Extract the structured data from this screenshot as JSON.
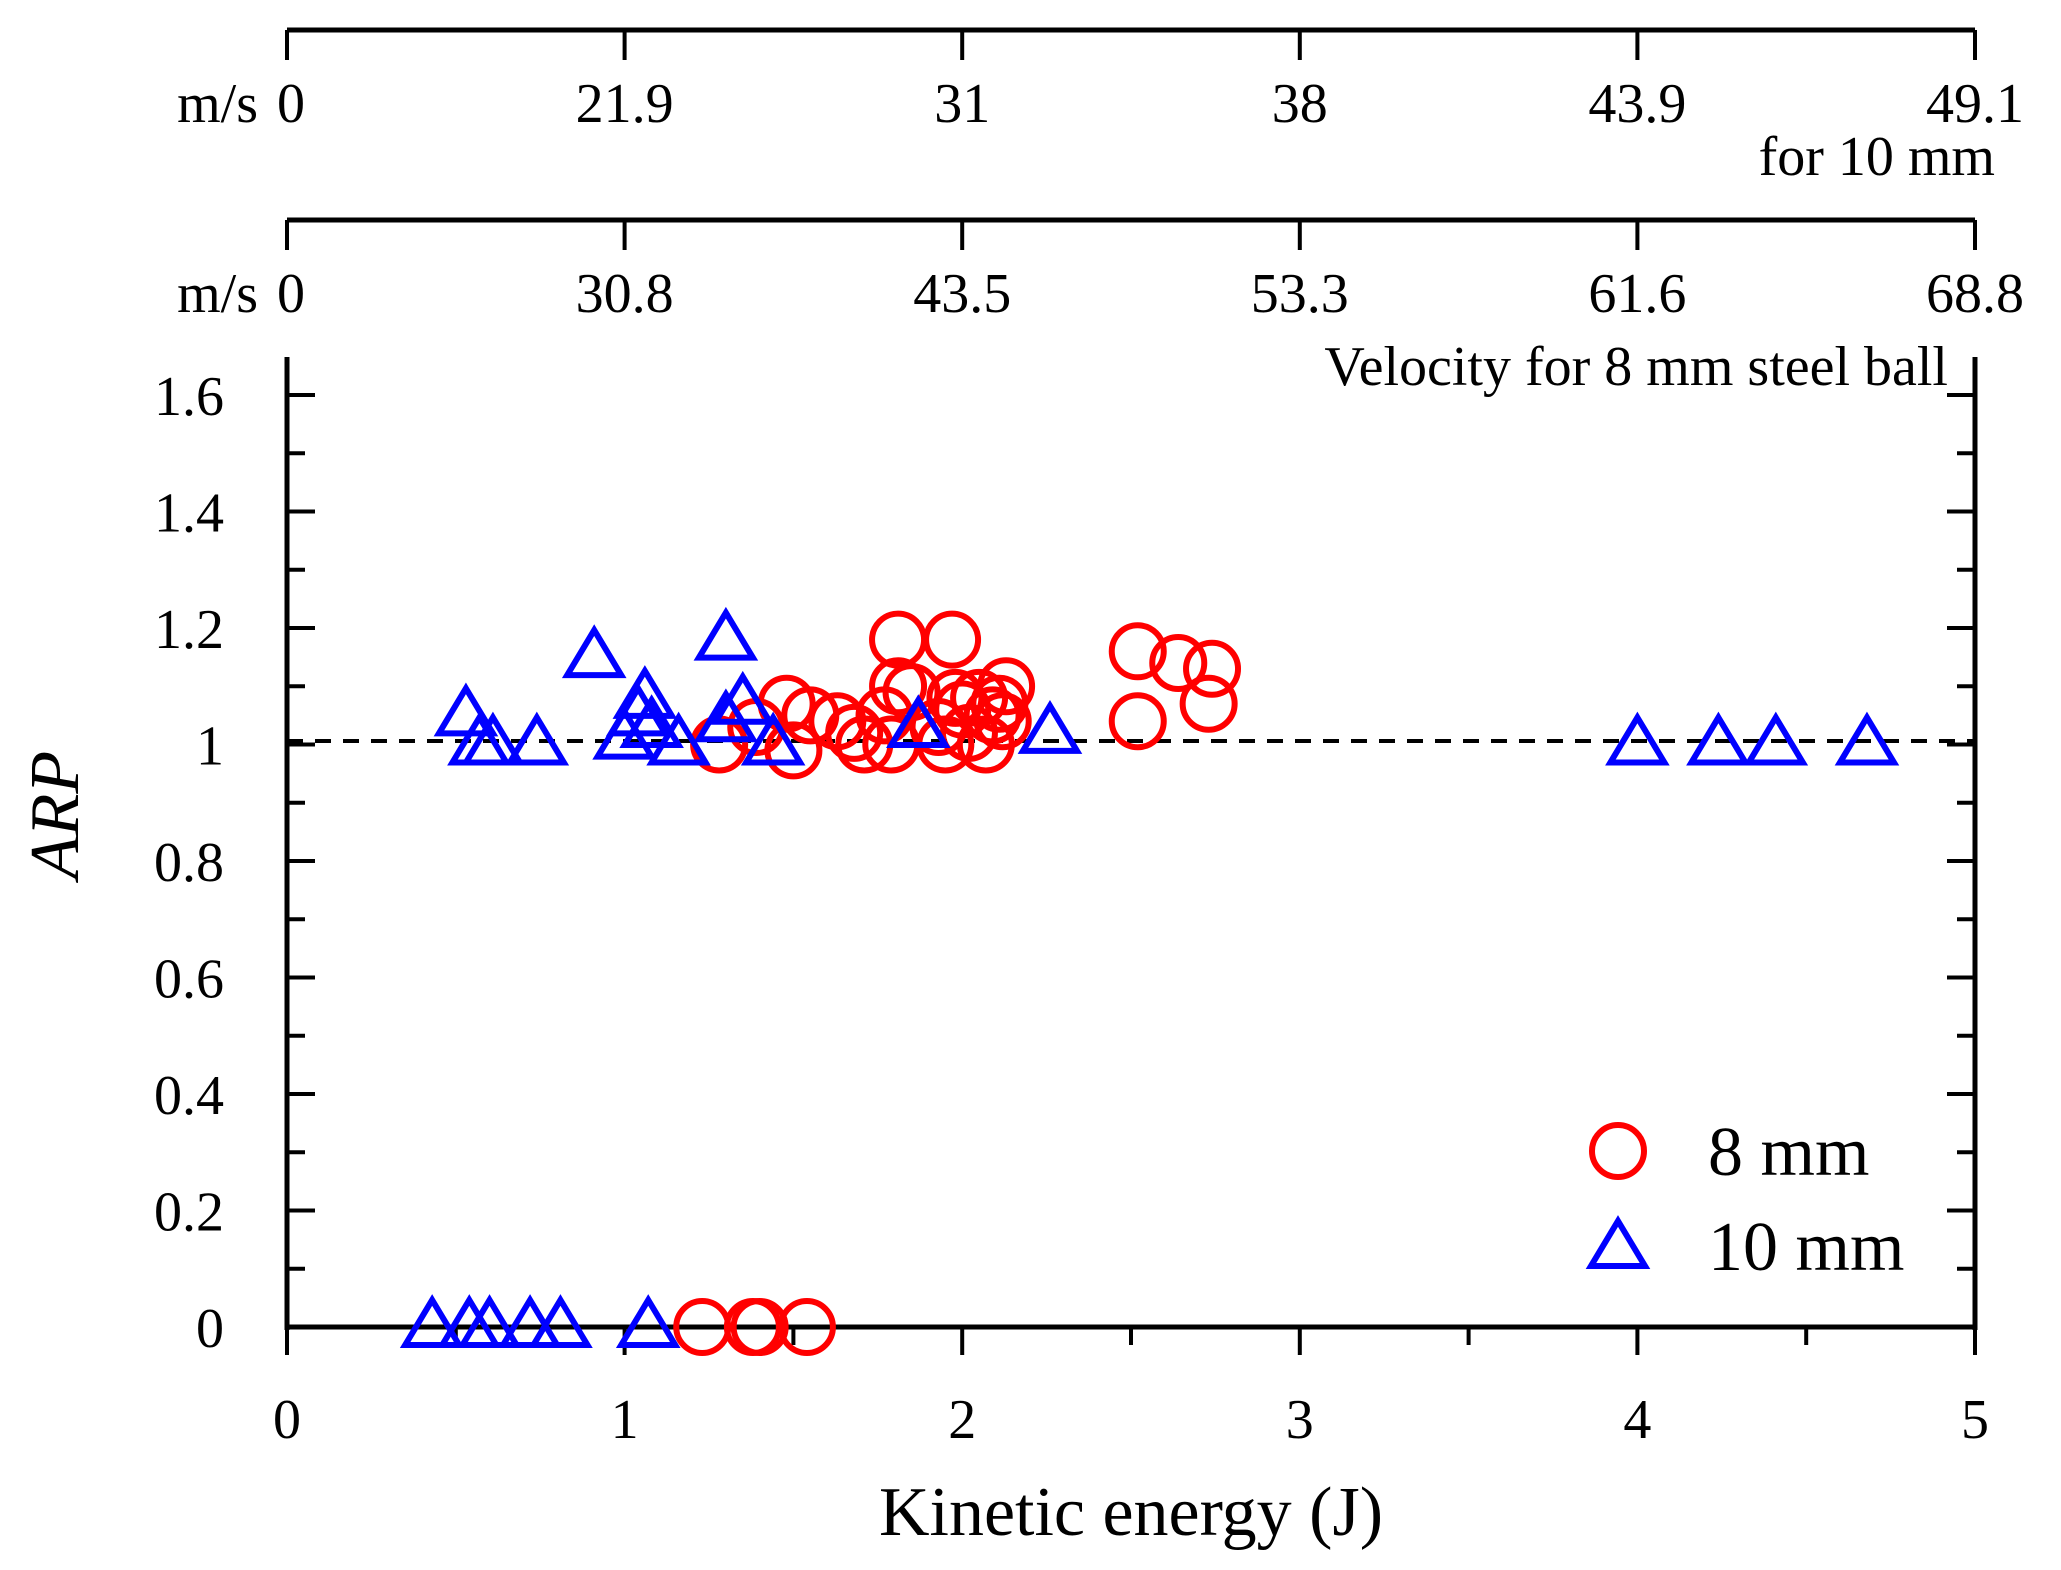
{
  "chart_data": {
    "type": "scatter",
    "title": "",
    "xlabel": "Kinetic energy (J)",
    "ylabel": "ARP",
    "xlim": [
      0,
      5
    ],
    "ylim": [
      0,
      1.6
    ],
    "x_ticks": [
      0,
      1,
      2,
      3,
      4,
      5
    ],
    "y_ticks": [
      0,
      0.2,
      0.4,
      0.6,
      0.8,
      1,
      1.2,
      1.4,
      1.6
    ],
    "reference_line": {
      "y": 1,
      "style": "dashed"
    },
    "top_axes": [
      {
        "unit": "m/s",
        "caption": "for 10 mm",
        "tick_labels": [
          "0",
          "21.9",
          "31",
          "38",
          "43.9",
          "49.1"
        ],
        "tick_energies": [
          0,
          1,
          2,
          3,
          4,
          5
        ]
      },
      {
        "unit": "m/s",
        "caption": "Velocity for 8 mm steel ball",
        "tick_labels": [
          "0",
          "30.8",
          "43.5",
          "53.3",
          "61.6",
          "68.8"
        ],
        "tick_energies": [
          0,
          1,
          2,
          3,
          4,
          5
        ]
      }
    ],
    "legend": {
      "position": "bottom-right"
    },
    "series": [
      {
        "name": "8 mm",
        "marker": "circle",
        "color": "#ff0000",
        "points": [
          [
            1.23,
            0
          ],
          [
            1.38,
            0
          ],
          [
            1.4,
            0
          ],
          [
            1.54,
            0
          ],
          [
            1.28,
            1.0
          ],
          [
            1.39,
            1.03
          ],
          [
            1.48,
            1.07
          ],
          [
            1.5,
            0.99
          ],
          [
            1.55,
            1.05
          ],
          [
            1.63,
            1.04
          ],
          [
            1.68,
            1.02
          ],
          [
            1.71,
            1.0
          ],
          [
            1.77,
            1.05
          ],
          [
            1.79,
            1.0
          ],
          [
            1.81,
            1.18
          ],
          [
            1.81,
            1.1
          ],
          [
            1.85,
            1.09
          ],
          [
            1.93,
            1.03
          ],
          [
            1.95,
            1.0
          ],
          [
            1.97,
            1.18
          ],
          [
            1.98,
            1.08
          ],
          [
            2.0,
            1.06
          ],
          [
            2.02,
            1.02
          ],
          [
            2.05,
            1.08
          ],
          [
            2.07,
            1.0
          ],
          [
            2.09,
            1.05
          ],
          [
            2.11,
            1.07
          ],
          [
            2.13,
            1.1
          ],
          [
            2.12,
            1.04
          ],
          [
            2.52,
            1.04
          ],
          [
            2.52,
            1.16
          ],
          [
            2.64,
            1.14
          ],
          [
            2.73,
            1.07
          ],
          [
            2.74,
            1.13
          ]
        ]
      },
      {
        "name": "10 mm",
        "marker": "triangle",
        "color": "#0000ff",
        "points": [
          [
            0.43,
            0
          ],
          [
            0.54,
            0
          ],
          [
            0.6,
            0
          ],
          [
            0.72,
            0
          ],
          [
            0.81,
            0
          ],
          [
            1.07,
            0
          ],
          [
            0.53,
            1.05
          ],
          [
            0.57,
            1.0
          ],
          [
            0.61,
            1.0
          ],
          [
            0.74,
            1.0
          ],
          [
            0.91,
            1.15
          ],
          [
            1.0,
            1.01
          ],
          [
            1.04,
            1.05
          ],
          [
            1.06,
            1.08
          ],
          [
            1.08,
            1.03
          ],
          [
            1.16,
            1.0
          ],
          [
            1.3,
            1.04
          ],
          [
            1.3,
            1.18
          ],
          [
            1.35,
            1.07
          ],
          [
            1.44,
            1.0
          ],
          [
            1.87,
            1.03
          ],
          [
            2.26,
            1.02
          ],
          [
            4.0,
            1.0
          ],
          [
            4.24,
            1.0
          ],
          [
            4.41,
            1.0
          ],
          [
            4.68,
            1.0
          ]
        ]
      }
    ]
  }
}
